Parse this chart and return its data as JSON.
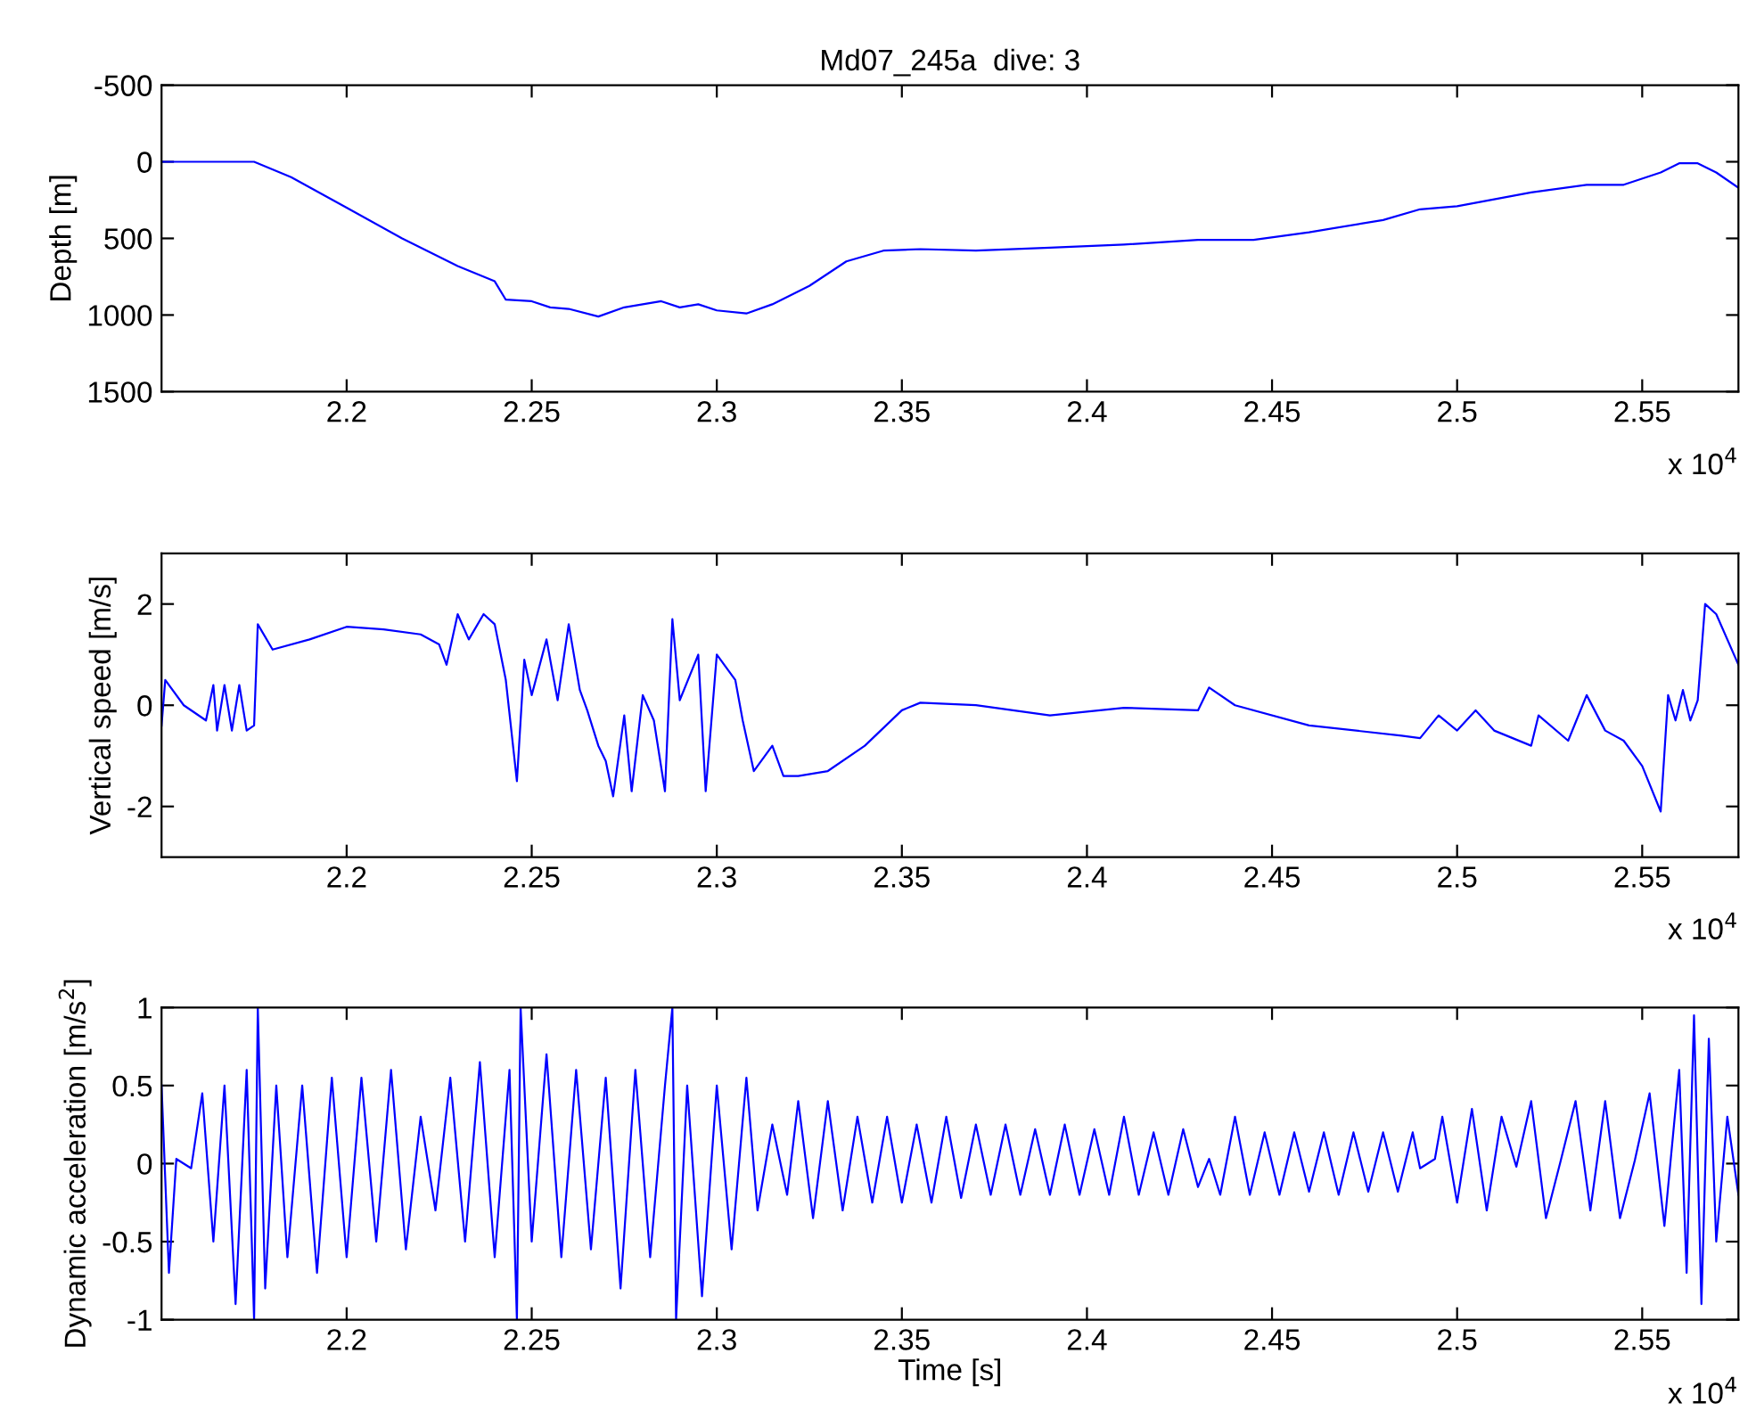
{
  "chart_data": [
    {
      "type": "line",
      "title": "Md07_245a  dive: 3",
      "ylabel": "Depth [m]",
      "annotations": [
        "x 10$^{4}$"
      ],
      "xlim": [
        2.15,
        2.576
      ],
      "xticks": [
        2.2,
        2.25,
        2.3,
        2.35,
        2.4,
        2.45,
        2.5,
        2.55
      ],
      "ylim": [
        1500,
        -500
      ],
      "yticks": [
        -500,
        0,
        500,
        1000,
        1500
      ],
      "x": [
        2.15,
        2.175,
        2.185,
        2.2,
        2.215,
        2.23,
        2.24,
        2.243,
        2.25,
        2.255,
        2.26,
        2.268,
        2.275,
        2.28,
        2.285,
        2.29,
        2.295,
        2.3,
        2.308,
        2.315,
        2.325,
        2.335,
        2.345,
        2.355,
        2.37,
        2.39,
        2.41,
        2.43,
        2.445,
        2.46,
        2.48,
        2.49,
        2.5,
        2.52,
        2.535,
        2.545,
        2.555,
        2.56,
        2.565,
        2.57,
        2.576
      ],
      "series": [
        {
          "color": "#0000ff",
          "values": [
            0,
            0,
            100,
            300,
            500,
            680,
            780,
            900,
            910,
            950,
            960,
            1010,
            950,
            930,
            910,
            950,
            930,
            970,
            990,
            930,
            810,
            650,
            580,
            570,
            580,
            560,
            540,
            510,
            510,
            460,
            380,
            310,
            290,
            200,
            150,
            150,
            70,
            10,
            10,
            70,
            170
          ]
        }
      ]
    },
    {
      "type": "line",
      "ylabel": "Vertical speed [m/s]",
      "annotations": [
        "x 10$^{4}$"
      ],
      "xlim": [
        2.15,
        2.576
      ],
      "xticks": [
        2.2,
        2.25,
        2.3,
        2.35,
        2.4,
        2.45,
        2.5,
        2.55
      ],
      "ylim": [
        -3,
        3
      ],
      "yticks": [
        -2,
        0,
        2
      ],
      "x": [
        2.15,
        2.151,
        2.156,
        2.162,
        2.164,
        2.165,
        2.167,
        2.169,
        2.171,
        2.173,
        2.175,
        2.176,
        2.18,
        2.19,
        2.2,
        2.21,
        2.22,
        2.225,
        2.227,
        2.23,
        2.233,
        2.237,
        2.24,
        2.243,
        2.246,
        2.248,
        2.25,
        2.254,
        2.257,
        2.26,
        2.263,
        2.265,
        2.268,
        2.27,
        2.272,
        2.275,
        2.277,
        2.28,
        2.283,
        2.286,
        2.288,
        2.29,
        2.295,
        2.297,
        2.3,
        2.305,
        2.307,
        2.31,
        2.315,
        2.318,
        2.322,
        2.33,
        2.34,
        2.35,
        2.355,
        2.37,
        2.39,
        2.41,
        2.43,
        2.433,
        2.44,
        2.46,
        2.485,
        2.49,
        2.495,
        2.5,
        2.505,
        2.51,
        2.52,
        2.522,
        2.53,
        2.535,
        2.54,
        2.545,
        2.55,
        2.555,
        2.557,
        2.559,
        2.561,
        2.563,
        2.565,
        2.567,
        2.57,
        2.576
      ],
      "series": [
        {
          "color": "#0000ff",
          "values": [
            -0.4,
            0.5,
            0,
            -0.3,
            0.4,
            -0.5,
            0.4,
            -0.5,
            0.4,
            -0.5,
            -0.4,
            1.6,
            1.1,
            1.3,
            1.55,
            1.5,
            1.4,
            1.2,
            0.8,
            1.8,
            1.3,
            1.8,
            1.6,
            0.5,
            -1.5,
            0.9,
            0.2,
            1.3,
            0.1,
            1.6,
            0.3,
            -0.1,
            -0.8,
            -1.1,
            -1.8,
            -0.2,
            -1.7,
            0.2,
            -0.3,
            -1.7,
            1.7,
            0.1,
            1.0,
            -1.7,
            1.0,
            0.5,
            -0.3,
            -1.3,
            -0.8,
            -1.4,
            -1.4,
            -1.3,
            -0.8,
            -0.1,
            0.05,
            0.0,
            -0.2,
            -0.05,
            -0.1,
            0.35,
            0.0,
            -0.4,
            -0.6,
            -0.65,
            -0.2,
            -0.5,
            -0.1,
            -0.5,
            -0.8,
            -0.2,
            -0.7,
            0.2,
            -0.5,
            -0.7,
            -1.2,
            -2.1,
            0.2,
            -0.3,
            0.3,
            -0.3,
            0.1,
            2.0,
            1.8,
            0.8
          ]
        }
      ]
    },
    {
      "type": "line",
      "xlabel": "Time [s]",
      "ylabel": "Dynamic acceleration [m/s$^{2}$]",
      "annotations": [
        "x 10$^{4}$"
      ],
      "xlim": [
        2.15,
        2.576
      ],
      "xticks": [
        2.2,
        2.25,
        2.3,
        2.35,
        2.4,
        2.45,
        2.5,
        2.55
      ],
      "ylim": [
        -1,
        1
      ],
      "yticks": [
        -1,
        -0.5,
        0,
        0.5,
        1
      ],
      "x": [
        2.15,
        2.152,
        2.154,
        2.158,
        2.161,
        2.164,
        2.167,
        2.17,
        2.173,
        2.175,
        2.176,
        2.178,
        2.181,
        2.184,
        2.188,
        2.192,
        2.196,
        2.2,
        2.204,
        2.208,
        2.212,
        2.216,
        2.22,
        2.224,
        2.228,
        2.232,
        2.236,
        2.24,
        2.244,
        2.246,
        2.247,
        2.25,
        2.254,
        2.258,
        2.262,
        2.266,
        2.27,
        2.274,
        2.278,
        2.282,
        2.286,
        2.288,
        2.289,
        2.292,
        2.296,
        2.3,
        2.304,
        2.308,
        2.311,
        2.315,
        2.319,
        2.322,
        2.326,
        2.33,
        2.334,
        2.338,
        2.342,
        2.346,
        2.35,
        2.354,
        2.358,
        2.362,
        2.366,
        2.37,
        2.374,
        2.378,
        2.382,
        2.386,
        2.39,
        2.394,
        2.398,
        2.402,
        2.406,
        2.41,
        2.414,
        2.418,
        2.422,
        2.426,
        2.43,
        2.433,
        2.436,
        2.44,
        2.444,
        2.448,
        2.452,
        2.456,
        2.46,
        2.464,
        2.468,
        2.472,
        2.476,
        2.48,
        2.484,
        2.488,
        2.49,
        2.494,
        2.496,
        2.5,
        2.504,
        2.508,
        2.512,
        2.516,
        2.52,
        2.524,
        2.528,
        2.532,
        2.536,
        2.54,
        2.544,
        2.548,
        2.552,
        2.556,
        2.56,
        2.562,
        2.564,
        2.566,
        2.568,
        2.57,
        2.573,
        2.576
      ],
      "series": [
        {
          "color": "#0000ff",
          "values": [
            0.5,
            -0.7,
            0.03,
            -0.03,
            0.45,
            -0.5,
            0.5,
            -0.9,
            0.6,
            -1.0,
            1.0,
            -0.8,
            0.5,
            -0.6,
            0.5,
            -0.7,
            0.55,
            -0.6,
            0.55,
            -0.5,
            0.6,
            -0.55,
            0.3,
            -0.3,
            0.55,
            -0.5,
            0.65,
            -0.6,
            0.6,
            -1.0,
            1.0,
            -0.5,
            0.7,
            -0.6,
            0.6,
            -0.55,
            0.55,
            -0.8,
            0.6,
            -0.6,
            0.5,
            1.0,
            -1.0,
            0.5,
            -0.85,
            0.5,
            -0.55,
            0.55,
            -0.3,
            0.25,
            -0.2,
            0.4,
            -0.35,
            0.4,
            -0.3,
            0.3,
            -0.25,
            0.3,
            -0.25,
            0.25,
            -0.25,
            0.3,
            -0.22,
            0.25,
            -0.2,
            0.25,
            -0.2,
            0.22,
            -0.2,
            0.25,
            -0.2,
            0.22,
            -0.2,
            0.3,
            -0.2,
            0.2,
            -0.2,
            0.22,
            -0.15,
            0.03,
            -0.2,
            0.3,
            -0.2,
            0.2,
            -0.2,
            0.2,
            -0.18,
            0.2,
            -0.2,
            0.2,
            -0.18,
            0.2,
            -0.18,
            0.2,
            -0.03,
            0.03,
            0.3,
            -0.25,
            0.35,
            -0.3,
            0.3,
            -0.02,
            0.4,
            -0.35,
            0.02,
            0.4,
            -0.3,
            0.4,
            -0.35,
            0.02,
            0.45,
            -0.4,
            0.6,
            -0.7,
            0.95,
            -0.9,
            0.8,
            -0.5,
            0.3,
            -0.2
          ]
        }
      ]
    }
  ]
}
